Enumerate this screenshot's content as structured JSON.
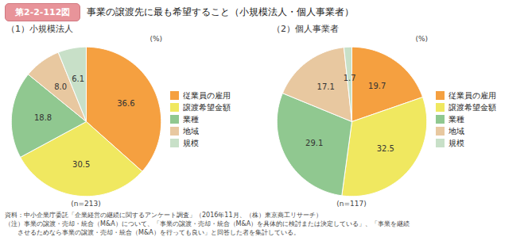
{
  "title": "事業の譲渡先に最も希望すること（小規模法人・個人事業者）",
  "annotations": [
    "第2-2-112図",
    "資料：中小企業庁委託「企業経営の継続に関するアンケート調査」（2016年11月、（株）東京商工リサーチ）",
    "（注）事業の譲渡・売却・統合（M&A）について、「事業の譲渡・売却・統合（M&A）を具体的に検討または決定している」、「事業を継続",
    "　　させるためなら事業の譲渡・売却・統合（M&A）を行っても良い」と回答した者を集計している。"
  ],
  "chart_data": [
    {
      "type": "pie",
      "title": "（1）小規模法人",
      "categories": [
        "従業員の雇用",
        "譲渡希望金額",
        "業種",
        "地域",
        "規模"
      ],
      "values": [
        36.6,
        30.5,
        18.8,
        8.0,
        6.1
      ],
      "value_labels": [
        "36.6",
        "30.5",
        "18.8",
        "8.0",
        "6.1"
      ],
      "colors": [
        "#F5A040",
        "#F0E860",
        "#90C890",
        "#E8C8A0",
        "#C8E0C8"
      ],
      "data_labels": true,
      "legend": "right",
      "annotations": [
        "(%)",
        "(n=213)"
      ]
    },
    {
      "type": "pie",
      "title": "（2）個人事業者",
      "categories": [
        "従業員の雇用",
        "譲渡希望金額",
        "業種",
        "地域",
        "規模"
      ],
      "values": [
        19.7,
        32.5,
        29.1,
        17.1,
        1.7
      ],
      "value_labels": [
        "19.7",
        "32.5",
        "29.1",
        "17.1",
        "1.7"
      ],
      "colors": [
        "#F5A040",
        "#F0E860",
        "#90C890",
        "#E8C8A0",
        "#C8E0C8"
      ],
      "data_labels": true,
      "legend": "right",
      "annotations": [
        "(%)",
        "(n=117)"
      ]
    }
  ]
}
